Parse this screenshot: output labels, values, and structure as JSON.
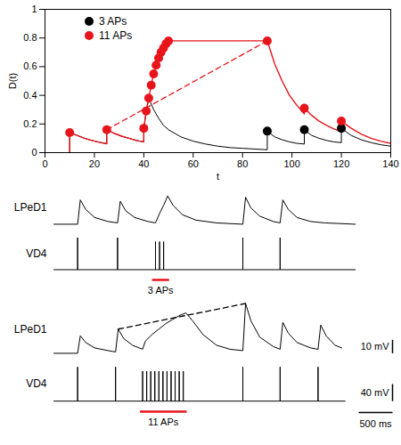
{
  "chart_data": [
    {
      "type": "line",
      "x_label": "t",
      "y_label": "D(t)",
      "xlim": [
        0,
        140
      ],
      "xticks": [
        0,
        20,
        40,
        60,
        80,
        100,
        120,
        140
      ],
      "ylim": [
        0,
        1
      ],
      "yticks": [
        0,
        0.2,
        0.4,
        0.6,
        0.8,
        1
      ],
      "legend": "upper left",
      "series": [
        {
          "name": "3 APs",
          "color": "#000000",
          "marker": "circle",
          "x": [
            10,
            10,
            13,
            16,
            19,
            22,
            25,
            25,
            28,
            31,
            34,
            37,
            40,
            40,
            41,
            42,
            44,
            46,
            48,
            50,
            55,
            60,
            65,
            70,
            75,
            80,
            85,
            90,
            90,
            93,
            96,
            99,
            102,
            105,
            105,
            108,
            111,
            114,
            117,
            120,
            120,
            124,
            128,
            132,
            136,
            140
          ],
          "values": [
            0,
            0.14,
            0.12,
            0.1,
            0.085,
            0.072,
            0.062,
            0.16,
            0.135,
            0.115,
            0.1,
            0.085,
            0.075,
            0.17,
            0.29,
            0.38,
            0.3,
            0.24,
            0.19,
            0.16,
            0.11,
            0.08,
            0.06,
            0.045,
            0.035,
            0.03,
            0.025,
            0.02,
            0.15,
            0.11,
            0.09,
            0.075,
            0.065,
            0.06,
            0.16,
            0.12,
            0.1,
            0.085,
            0.075,
            0.07,
            0.17,
            0.12,
            0.09,
            0.07,
            0.055,
            0.045
          ],
          "spikes": {
            "x": [
              90,
              105,
              120
            ],
            "values": [
              0.15,
              0.16,
              0.17
            ]
          }
        },
        {
          "name": "11 APs",
          "color": "#e8141c",
          "marker": "circle",
          "x": [
            10,
            10,
            13,
            16,
            19,
            22,
            25,
            25,
            28,
            31,
            34,
            37,
            40,
            40,
            41,
            42,
            43,
            44,
            45,
            46,
            47,
            48,
            49,
            50,
            90,
            93,
            96,
            99,
            102,
            105,
            105,
            108,
            111,
            114,
            117,
            120,
            120,
            124,
            128,
            132,
            136,
            140
          ],
          "values": [
            0,
            0.14,
            0.12,
            0.1,
            0.085,
            0.072,
            0.062,
            0.16,
            0.135,
            0.115,
            0.1,
            0.085,
            0.075,
            0.17,
            0.29,
            0.38,
            0.47,
            0.55,
            0.61,
            0.66,
            0.7,
            0.73,
            0.76,
            0.78,
            0.78,
            0.62,
            0.5,
            0.4,
            0.33,
            0.27,
            0.31,
            0.26,
            0.22,
            0.19,
            0.165,
            0.145,
            0.22,
            0.17,
            0.13,
            0.1,
            0.08,
            0.065
          ],
          "spikes": {
            "x": [
              10,
              25,
              40,
              41,
              42,
              43,
              44,
              45,
              46,
              47,
              48,
              49,
              50,
              90,
              105,
              120
            ],
            "values": [
              0.14,
              0.16,
              0.17,
              0.29,
              0.38,
              0.47,
              0.55,
              0.61,
              0.66,
              0.7,
              0.73,
              0.76,
              0.78,
              0.78,
              0.31,
              0.22
            ]
          },
          "extrapolation": {
            "x": [
              25,
              90
            ],
            "values": [
              0.16,
              0.78
            ],
            "line_style": "dashed"
          }
        }
      ]
    },
    {
      "type": "line",
      "tick_labels": false,
      "xlim": [
        0,
        5000
      ],
      "stimulus": {
        "label": "3 APs",
        "x": [
          1450,
          1700
        ],
        "color": "#e8141c"
      },
      "series": [
        {
          "name": "LPeD1",
          "color": "#000000",
          "ylim": [
            -3,
            28
          ],
          "x": [
            0,
            350,
            390,
            470,
            600,
            800,
            940,
            980,
            1060,
            1190,
            1390,
            1500,
            1560,
            1620,
            1680,
            1760,
            1900,
            2100,
            2400,
            2790,
            2830,
            2910,
            3040,
            3240,
            3340,
            3380,
            3460,
            3590,
            3790,
            4000,
            4450
          ],
          "values": [
            0,
            0,
            18,
            11,
            5,
            2,
            1,
            17,
            10,
            5,
            2,
            1,
            8,
            14,
            21,
            14,
            7,
            3,
            1,
            0,
            20,
            12,
            6,
            2,
            1,
            18,
            11,
            5,
            2,
            1,
            0
          ]
        },
        {
          "name": "VD4",
          "color": "#000000",
          "ylim": [
            -10,
            90
          ],
          "x": [
            0,
            350,
            350,
            350,
            940,
            940,
            940,
            1500,
            1500,
            1500,
            1560,
            1560,
            1560,
            1620,
            1620,
            1620,
            2790,
            2790,
            2790,
            3340,
            3340,
            3340,
            4450
          ],
          "values": [
            0,
            0,
            80,
            0,
            0,
            80,
            0,
            0,
            70,
            0,
            0,
            70,
            0,
            0,
            70,
            0,
            0,
            80,
            0,
            0,
            80,
            0,
            0
          ]
        }
      ]
    },
    {
      "type": "line",
      "tick_labels": false,
      "xlim": [
        0,
        5000
      ],
      "stimulus": {
        "label": "11 APs",
        "x": [
          1270,
          1960
        ],
        "color": "#e8141c"
      },
      "scale_bars": [
        {
          "label": "10 mV",
          "value": 10,
          "series": "LPeD1"
        },
        {
          "label": "40 mV",
          "value": 40,
          "series": "VD4"
        },
        {
          "label": "500 ms",
          "value": 500,
          "axis": "x"
        }
      ],
      "series": [
        {
          "name": "LPeD1",
          "color": "#000000",
          "ylim": [
            -3,
            38
          ],
          "x": [
            0,
            350,
            390,
            470,
            600,
            800,
            910,
            950,
            1030,
            1160,
            1310,
            1350,
            1450,
            1550,
            1650,
            1750,
            1850,
            1950,
            2050,
            2200,
            2400,
            2600,
            2790,
            2830,
            2910,
            3040,
            3240,
            3340,
            3380,
            3460,
            3590,
            3790,
            3900,
            3940,
            4020,
            4150,
            4250
          ],
          "values": [
            0,
            0,
            13,
            8,
            4,
            2,
            1,
            18,
            11,
            6,
            3,
            9,
            14,
            18,
            22,
            25,
            28,
            30,
            24,
            14,
            6,
            3,
            2,
            37,
            24,
            12,
            5,
            3,
            23,
            15,
            8,
            4,
            3,
            21,
            13,
            6,
            4
          ],
          "extrapolation": {
            "x": [
              950,
              2830
            ],
            "values": [
              18,
              37
            ],
            "line_style": "dashed"
          }
        },
        {
          "name": "VD4",
          "color": "#000000",
          "ylim": [
            -10,
            90
          ],
          "x": [
            0,
            350,
            350,
            350,
            910,
            910,
            910,
            1310,
            1310,
            1310,
            1370,
            1370,
            1370,
            1430,
            1430,
            1430,
            1490,
            1490,
            1490,
            1550,
            1550,
            1550,
            1610,
            1610,
            1610,
            1670,
            1670,
            1670,
            1730,
            1730,
            1730,
            1790,
            1790,
            1790,
            1850,
            1850,
            1850,
            1910,
            1910,
            1910,
            2790,
            2790,
            2790,
            3340,
            3340,
            3340,
            3900,
            3900,
            3900,
            4300
          ],
          "values": [
            0,
            0,
            80,
            0,
            0,
            80,
            0,
            0,
            70,
            0,
            0,
            70,
            0,
            0,
            70,
            0,
            0,
            70,
            0,
            0,
            70,
            0,
            0,
            70,
            0,
            0,
            70,
            0,
            0,
            70,
            0,
            0,
            70,
            0,
            0,
            70,
            0,
            0,
            70,
            0,
            0,
            80,
            0,
            0,
            80,
            0,
            0,
            80,
            0,
            0
          ]
        }
      ]
    }
  ]
}
